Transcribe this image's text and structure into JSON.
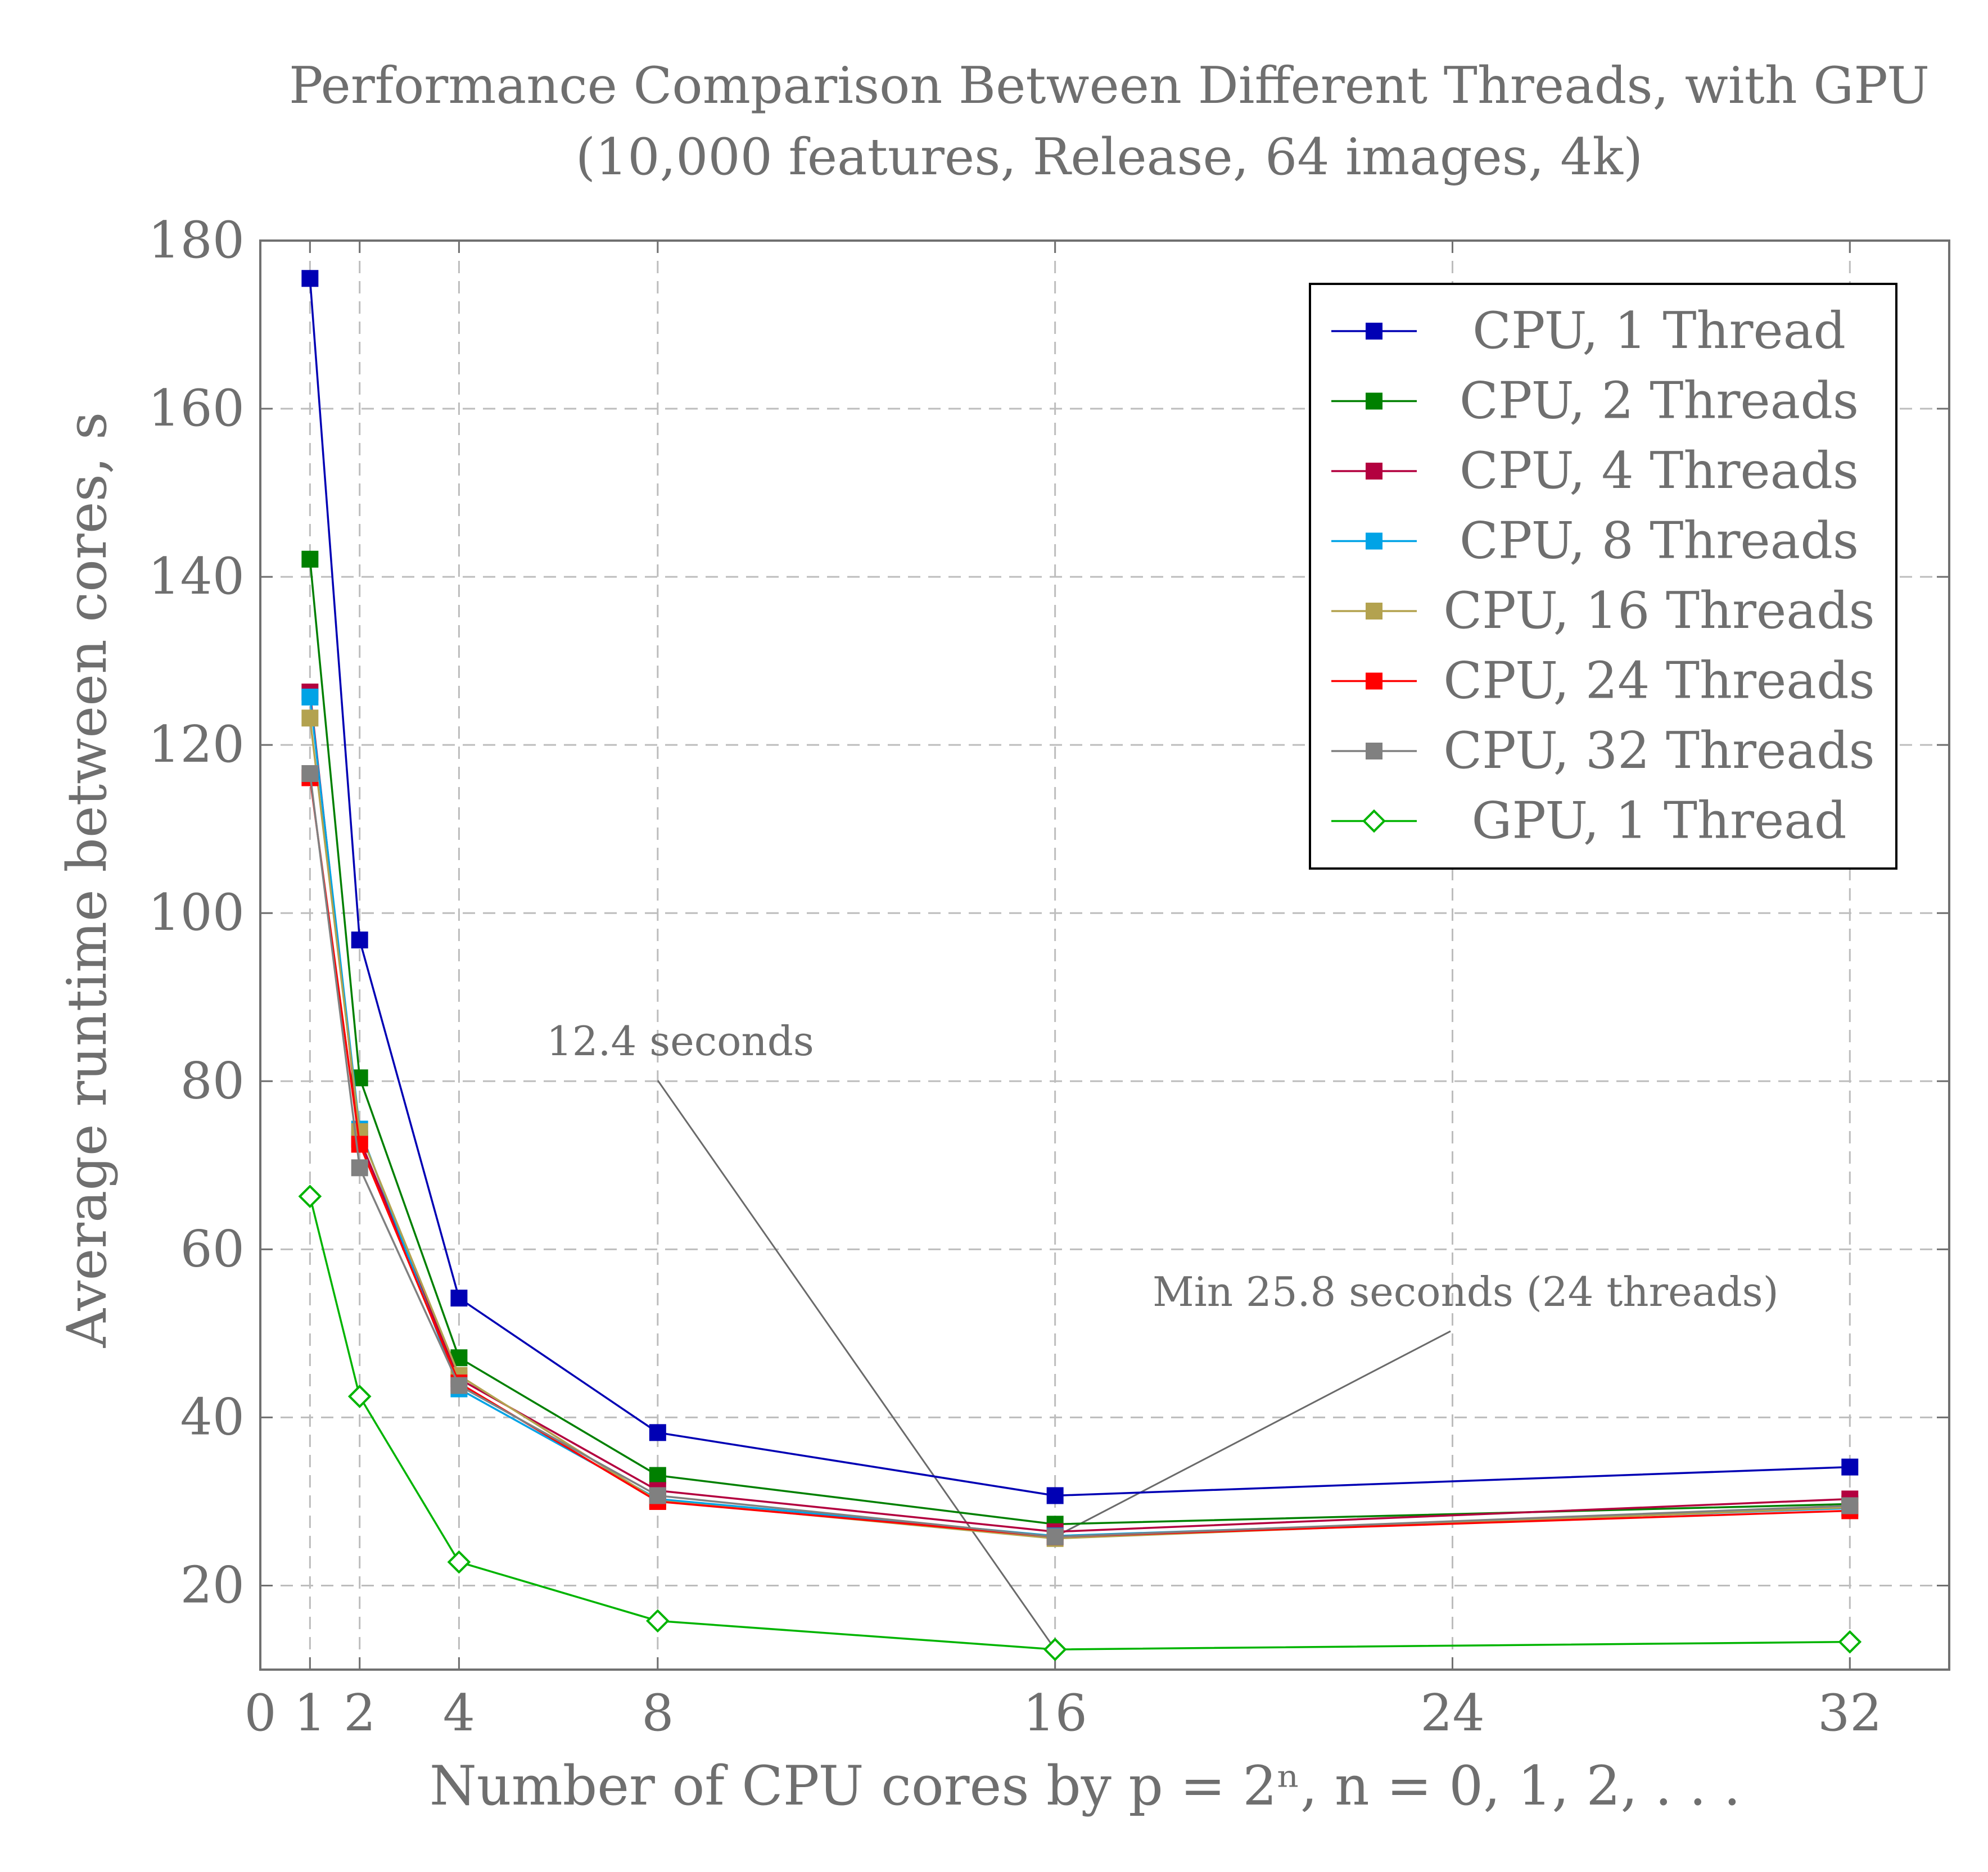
{
  "chart_data": {
    "type": "line",
    "title": "Performance Comparison Between Different Threads, with GPU",
    "subtitle": "(10,000 features, Release, 64 images, 4k)",
    "xlabel": "Number of CPU cores by p = 2ⁿ, n = 0, 1, 2, . . .",
    "ylabel": "Average runtime between cores, s",
    "xlim": [
      0,
      34
    ],
    "ylim": [
      10,
      180
    ],
    "xticks": [
      0,
      1,
      2,
      4,
      8,
      16,
      24,
      32
    ],
    "yticks": [
      20,
      40,
      60,
      80,
      100,
      120,
      140,
      160,
      180
    ],
    "grid": true,
    "legend_position": "top-right",
    "x": [
      1,
      2,
      4,
      8,
      16,
      32
    ],
    "series": [
      {
        "name": "CPU, 1 Thread",
        "color": "#0000b4",
        "marker": "square",
        "values": [
          175.5,
          96.8,
          54.2,
          38.2,
          30.7,
          34.1
        ]
      },
      {
        "name": "CPU, 2 Threads",
        "color": "#008000",
        "marker": "square",
        "values": [
          142.1,
          80.4,
          47.1,
          33.1,
          27.3,
          29.7
        ]
      },
      {
        "name": "CPU, 4 Threads",
        "color": "#b3003f",
        "marker": "square",
        "values": [
          126.3,
          73.1,
          44.6,
          31.3,
          26.4,
          30.3
        ]
      },
      {
        "name": "CPU, 8 Threads",
        "color": "#00a3e6",
        "marker": "square",
        "values": [
          125.7,
          74.3,
          43.4,
          30.3,
          25.9,
          29.2
        ]
      },
      {
        "name": "CPU, 16 Threads",
        "color": "#b3a24f",
        "marker": "square",
        "values": [
          123.2,
          74.0,
          45.0,
          30.1,
          25.6,
          29.3
        ]
      },
      {
        "name": "CPU, 24 Threads",
        "color": "#ff0000",
        "marker": "square",
        "values": [
          116.1,
          72.5,
          44.1,
          30.0,
          25.8,
          28.9
        ]
      },
      {
        "name": "CPU, 32 Threads",
        "color": "#808080",
        "marker": "square",
        "values": [
          116.6,
          69.7,
          43.8,
          30.7,
          25.8,
          29.5
        ]
      },
      {
        "name": "GPU, 1 Thread",
        "color": "#00b400",
        "marker": "diamond",
        "values": [
          66.3,
          42.5,
          22.8,
          15.8,
          12.4,
          13.3
        ]
      }
    ],
    "annotations": [
      {
        "text": "12.4 seconds",
        "x_data": 16,
        "y_data": 12.4
      },
      {
        "text": "Min 25.8 seconds (24 threads)",
        "x_data": 16,
        "y_data": 25.8
      }
    ]
  }
}
